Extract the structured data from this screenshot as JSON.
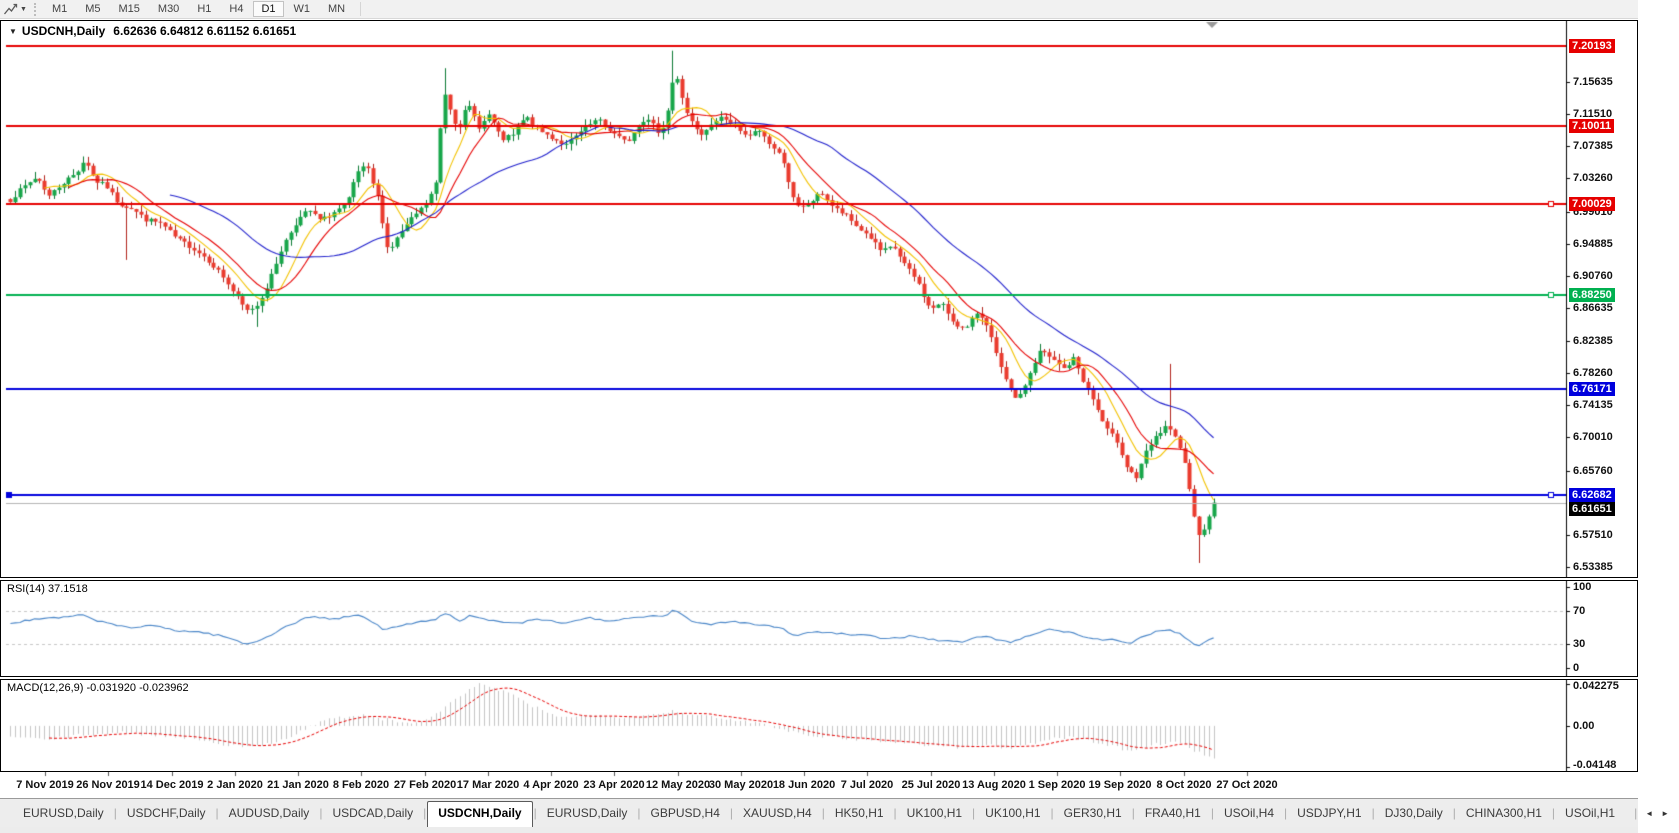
{
  "toolbar": {
    "timeframes": [
      "M1",
      "M5",
      "M15",
      "M30",
      "H1",
      "H4",
      "D1",
      "W1",
      "MN"
    ],
    "active": "D1"
  },
  "icons": {
    "symbol_dropdown": "▼",
    "toolbar_caret": "▼",
    "tab_scroll_left": "◄",
    "tab_scroll_right": "►"
  },
  "chart": {
    "title": "USDCNH,Daily",
    "ohlc": "6.62636 6.64812 6.61152 6.61651"
  },
  "chart_data": {
    "type": "candlestick",
    "symbol": "USDCNH",
    "timeframe": "Daily",
    "price_axis": {
      "min": 6.521,
      "max": 7.2346,
      "ticks": [
        "7.15635",
        "7.11510",
        "7.07385",
        "7.03260",
        "6.99010",
        "6.94885",
        "6.90760",
        "6.86635",
        "6.82385",
        "6.78260",
        "6.74135",
        "6.70010",
        "6.65760",
        "6.57510",
        "6.53385"
      ]
    },
    "h_lines": [
      {
        "value": 7.20193,
        "label": "7.20193",
        "color": "#e60000"
      },
      {
        "value": 7.10011,
        "label": "7.10011",
        "color": "#e60000"
      },
      {
        "value": 7.00029,
        "label": "7.00029",
        "color": "#e60000",
        "handle": true
      },
      {
        "value": 6.8825,
        "label": "6.88250",
        "color": "#00b050",
        "handle": true
      },
      {
        "value": 6.76171,
        "label": "6.76171",
        "color": "#0000dd"
      },
      {
        "value": 6.62682,
        "label": "6.62682",
        "color": "#0000dd",
        "handle": true,
        "left_handle": true
      }
    ],
    "current_price": {
      "value": 6.61651,
      "label": "6.61651",
      "line_color": "#b3b3b3",
      "bg": "#000000"
    },
    "candles": {
      "count": 250,
      "up_fill": "#17a64a",
      "up_stroke": "#0b7a33",
      "down_fill": "#ea3b2e",
      "down_stroke": "#b0221b",
      "last_close": 6.61651,
      "path": [
        [
          0,
          7.005
        ],
        [
          0.01,
          7.02
        ],
        [
          0.022,
          7.035
        ],
        [
          0.032,
          7.01
        ],
        [
          0.042,
          7.025
        ],
        [
          0.055,
          7.04
        ],
        [
          0.062,
          7.058
        ],
        [
          0.07,
          7.03
        ],
        [
          0.08,
          7.022
        ],
        [
          0.09,
          7.0
        ],
        [
          0.1,
          6.995
        ],
        [
          0.112,
          6.98
        ],
        [
          0.125,
          6.975
        ],
        [
          0.138,
          6.955
        ],
        [
          0.15,
          6.945
        ],
        [
          0.163,
          6.93
        ],
        [
          0.175,
          6.91
        ],
        [
          0.186,
          6.885
        ],
        [
          0.196,
          6.862
        ],
        [
          0.205,
          6.87
        ],
        [
          0.215,
          6.9
        ],
        [
          0.226,
          6.945
        ],
        [
          0.238,
          6.978
        ],
        [
          0.248,
          6.992
        ],
        [
          0.258,
          6.978
        ],
        [
          0.268,
          6.988
        ],
        [
          0.28,
          7.0
        ],
        [
          0.288,
          7.04
        ],
        [
          0.296,
          7.048
        ],
        [
          0.306,
          7.005
        ],
        [
          0.314,
          6.938
        ],
        [
          0.324,
          6.962
        ],
        [
          0.336,
          6.985
        ],
        [
          0.346,
          7.0
        ],
        [
          0.354,
          7.028
        ],
        [
          0.36,
          7.148
        ],
        [
          0.366,
          7.12
        ],
        [
          0.372,
          7.095
        ],
        [
          0.38,
          7.128
        ],
        [
          0.39,
          7.098
        ],
        [
          0.398,
          7.115
        ],
        [
          0.408,
          7.082
        ],
        [
          0.418,
          7.088
        ],
        [
          0.428,
          7.112
        ],
        [
          0.438,
          7.095
        ],
        [
          0.45,
          7.085
        ],
        [
          0.462,
          7.075
        ],
        [
          0.476,
          7.095
        ],
        [
          0.488,
          7.108
        ],
        [
          0.5,
          7.092
        ],
        [
          0.512,
          7.078
        ],
        [
          0.522,
          7.1
        ],
        [
          0.532,
          7.112
        ],
        [
          0.54,
          7.085
        ],
        [
          0.546,
          7.12
        ],
        [
          0.552,
          7.175
        ],
        [
          0.558,
          7.14
        ],
        [
          0.564,
          7.11
        ],
        [
          0.572,
          7.088
        ],
        [
          0.582,
          7.102
        ],
        [
          0.592,
          7.112
        ],
        [
          0.602,
          7.098
        ],
        [
          0.612,
          7.085
        ],
        [
          0.622,
          7.095
        ],
        [
          0.632,
          7.075
        ],
        [
          0.642,
          7.058
        ],
        [
          0.65,
          7.008
        ],
        [
          0.656,
          6.992
        ],
        [
          0.665,
          7.002
        ],
        [
          0.674,
          7.015
        ],
        [
          0.684,
          6.995
        ],
        [
          0.694,
          6.985
        ],
        [
          0.704,
          6.97
        ],
        [
          0.714,
          6.958
        ],
        [
          0.724,
          6.938
        ],
        [
          0.734,
          6.945
        ],
        [
          0.744,
          6.92
        ],
        [
          0.754,
          6.9
        ],
        [
          0.764,
          6.865
        ],
        [
          0.774,
          6.872
        ],
        [
          0.784,
          6.848
        ],
        [
          0.794,
          6.838
        ],
        [
          0.804,
          6.862
        ],
        [
          0.812,
          6.845
        ],
        [
          0.82,
          6.802
        ],
        [
          0.83,
          6.762
        ],
        [
          0.838,
          6.748
        ],
        [
          0.846,
          6.778
        ],
        [
          0.856,
          6.812
        ],
        [
          0.866,
          6.8
        ],
        [
          0.876,
          6.788
        ],
        [
          0.884,
          6.802
        ],
        [
          0.892,
          6.772
        ],
        [
          0.9,
          6.748
        ],
        [
          0.91,
          6.712
        ],
        [
          0.92,
          6.695
        ],
        [
          0.928,
          6.662
        ],
        [
          0.936,
          6.648
        ],
        [
          0.944,
          6.682
        ],
        [
          0.952,
          6.7
        ],
        [
          0.96,
          6.715
        ],
        [
          0.968,
          6.7
        ],
        [
          0.976,
          6.668
        ],
        [
          0.982,
          6.612
        ],
        [
          0.987,
          6.57
        ],
        [
          0.992,
          6.585
        ],
        [
          1,
          6.6165
        ]
      ],
      "spikes": [
        {
          "f": 0.097,
          "low": 6.928
        },
        {
          "f": 0.205,
          "low": 6.842
        },
        {
          "f": 0.36,
          "high": 7.174
        },
        {
          "f": 0.552,
          "high": 7.1965
        },
        {
          "f": 0.962,
          "high": 6.7945
        },
        {
          "f": 0.986,
          "low": 6.539
        }
      ]
    },
    "mas": [
      {
        "period": 8,
        "color": "#f2c200"
      },
      {
        "period": 13,
        "color": "#e60000"
      },
      {
        "period": 34,
        "color": "#2020cc"
      }
    ],
    "x_labels": [
      "7 Nov 2019",
      "26 Nov 2019",
      "14 Dec 2019",
      "2 Jan 2020",
      "21 Jan 2020",
      "8 Feb 2020",
      "27 Feb 2020",
      "17 Mar 2020",
      "4 Apr 2020",
      "23 Apr 2020",
      "12 May 2020",
      "30 May 2020",
      "18 Jun 2020",
      "7 Jul 2020",
      "25 Jul 2020",
      "13 Aug 2020",
      "1 Sep 2020",
      "19 Sep 2020",
      "8 Oct 2020",
      "27 Oct 2020"
    ],
    "rsi": {
      "display": "RSI(14) 37.1518",
      "color": "#4a86c8",
      "levels": [
        70,
        30
      ],
      "ticks": [
        "100",
        "70",
        "30",
        "0"
      ],
      "path": [
        [
          0,
          55
        ],
        [
          0.02,
          60
        ],
        [
          0.04,
          62
        ],
        [
          0.06,
          65
        ],
        [
          0.08,
          55
        ],
        [
          0.1,
          50
        ],
        [
          0.12,
          52
        ],
        [
          0.14,
          46
        ],
        [
          0.16,
          44
        ],
        [
          0.18,
          38
        ],
        [
          0.196,
          29
        ],
        [
          0.21,
          36
        ],
        [
          0.23,
          52
        ],
        [
          0.25,
          64
        ],
        [
          0.27,
          60
        ],
        [
          0.29,
          66
        ],
        [
          0.31,
          48
        ],
        [
          0.33,
          55
        ],
        [
          0.35,
          58
        ],
        [
          0.362,
          68
        ],
        [
          0.372,
          58
        ],
        [
          0.382,
          64
        ],
        [
          0.4,
          58
        ],
        [
          0.42,
          55
        ],
        [
          0.44,
          60
        ],
        [
          0.46,
          55
        ],
        [
          0.48,
          62
        ],
        [
          0.5,
          58
        ],
        [
          0.52,
          62
        ],
        [
          0.545,
          65
        ],
        [
          0.552,
          72
        ],
        [
          0.565,
          58
        ],
        [
          0.58,
          54
        ],
        [
          0.6,
          58
        ],
        [
          0.62,
          54
        ],
        [
          0.64,
          50
        ],
        [
          0.652,
          40
        ],
        [
          0.67,
          45
        ],
        [
          0.69,
          42
        ],
        [
          0.71,
          40
        ],
        [
          0.73,
          36
        ],
        [
          0.75,
          40
        ],
        [
          0.77,
          34
        ],
        [
          0.79,
          32
        ],
        [
          0.81,
          40
        ],
        [
          0.83,
          31
        ],
        [
          0.85,
          42
        ],
        [
          0.862,
          48
        ],
        [
          0.88,
          44
        ],
        [
          0.9,
          36
        ],
        [
          0.92,
          34
        ],
        [
          0.93,
          29
        ],
        [
          0.945,
          42
        ],
        [
          0.96,
          47
        ],
        [
          0.97,
          44
        ],
        [
          0.978,
          34
        ],
        [
          0.987,
          28
        ],
        [
          1,
          37.15
        ]
      ]
    },
    "macd": {
      "display": "MACD(12,26,9) -0.031920 -0.023962",
      "hist_color": "#c4c4c4",
      "signal_color": "#e60000",
      "min": -0.04148,
      "max": 0.042275,
      "ticks": [
        {
          "label": "0.042275",
          "value": 0.042275
        },
        {
          "label": "0.00",
          "value": 0
        },
        {
          "label": "-0.04148",
          "value": -0.04148
        }
      ],
      "path": [
        [
          0,
          -0.011
        ],
        [
          0.03,
          -0.014
        ],
        [
          0.06,
          -0.009
        ],
        [
          0.09,
          -0.007
        ],
        [
          0.12,
          -0.009
        ],
        [
          0.15,
          -0.012
        ],
        [
          0.18,
          -0.019
        ],
        [
          0.2,
          -0.022
        ],
        [
          0.23,
          -0.012
        ],
        [
          0.26,
          0.006
        ],
        [
          0.29,
          0.011
        ],
        [
          0.31,
          0.007
        ],
        [
          0.33,
          0.002
        ],
        [
          0.35,
          0.008
        ],
        [
          0.37,
          0.028
        ],
        [
          0.39,
          0.042
        ],
        [
          0.41,
          0.035
        ],
        [
          0.43,
          0.022
        ],
        [
          0.45,
          0.011
        ],
        [
          0.47,
          0.009
        ],
        [
          0.49,
          0.011
        ],
        [
          0.51,
          0.009
        ],
        [
          0.53,
          0.011
        ],
        [
          0.55,
          0.015
        ],
        [
          0.57,
          0.011
        ],
        [
          0.59,
          0.007
        ],
        [
          0.61,
          0.005
        ],
        [
          0.63,
          0.001
        ],
        [
          0.65,
          -0.006
        ],
        [
          0.67,
          -0.01
        ],
        [
          0.69,
          -0.012
        ],
        [
          0.71,
          -0.014
        ],
        [
          0.73,
          -0.016
        ],
        [
          0.75,
          -0.018
        ],
        [
          0.77,
          -0.02
        ],
        [
          0.79,
          -0.022
        ],
        [
          0.81,
          -0.019
        ],
        [
          0.83,
          -0.023
        ],
        [
          0.85,
          -0.017
        ],
        [
          0.87,
          -0.011
        ],
        [
          0.89,
          -0.013
        ],
        [
          0.91,
          -0.019
        ],
        [
          0.93,
          -0.025
        ],
        [
          0.95,
          -0.019
        ],
        [
          0.97,
          -0.015
        ],
        [
          0.985,
          -0.026
        ],
        [
          1,
          -0.032
        ]
      ]
    }
  },
  "tabs": {
    "active_index": 4,
    "items": [
      "EURUSD,Daily",
      "USDCHF,Daily",
      "AUDUSD,Daily",
      "USDCAD,Daily",
      "USDCNH,Daily",
      "EURUSD,Daily",
      "GBPUSD,H4",
      "XAUUSD,H4",
      "HK50,H1",
      "UK100,H1",
      "UK100,H1",
      "GER30,H1",
      "FRA40,H1",
      "USOil,H4",
      "USDJPY,H1",
      "DJ30,Daily",
      "CHINA300,H1",
      "USOil,H1"
    ]
  }
}
